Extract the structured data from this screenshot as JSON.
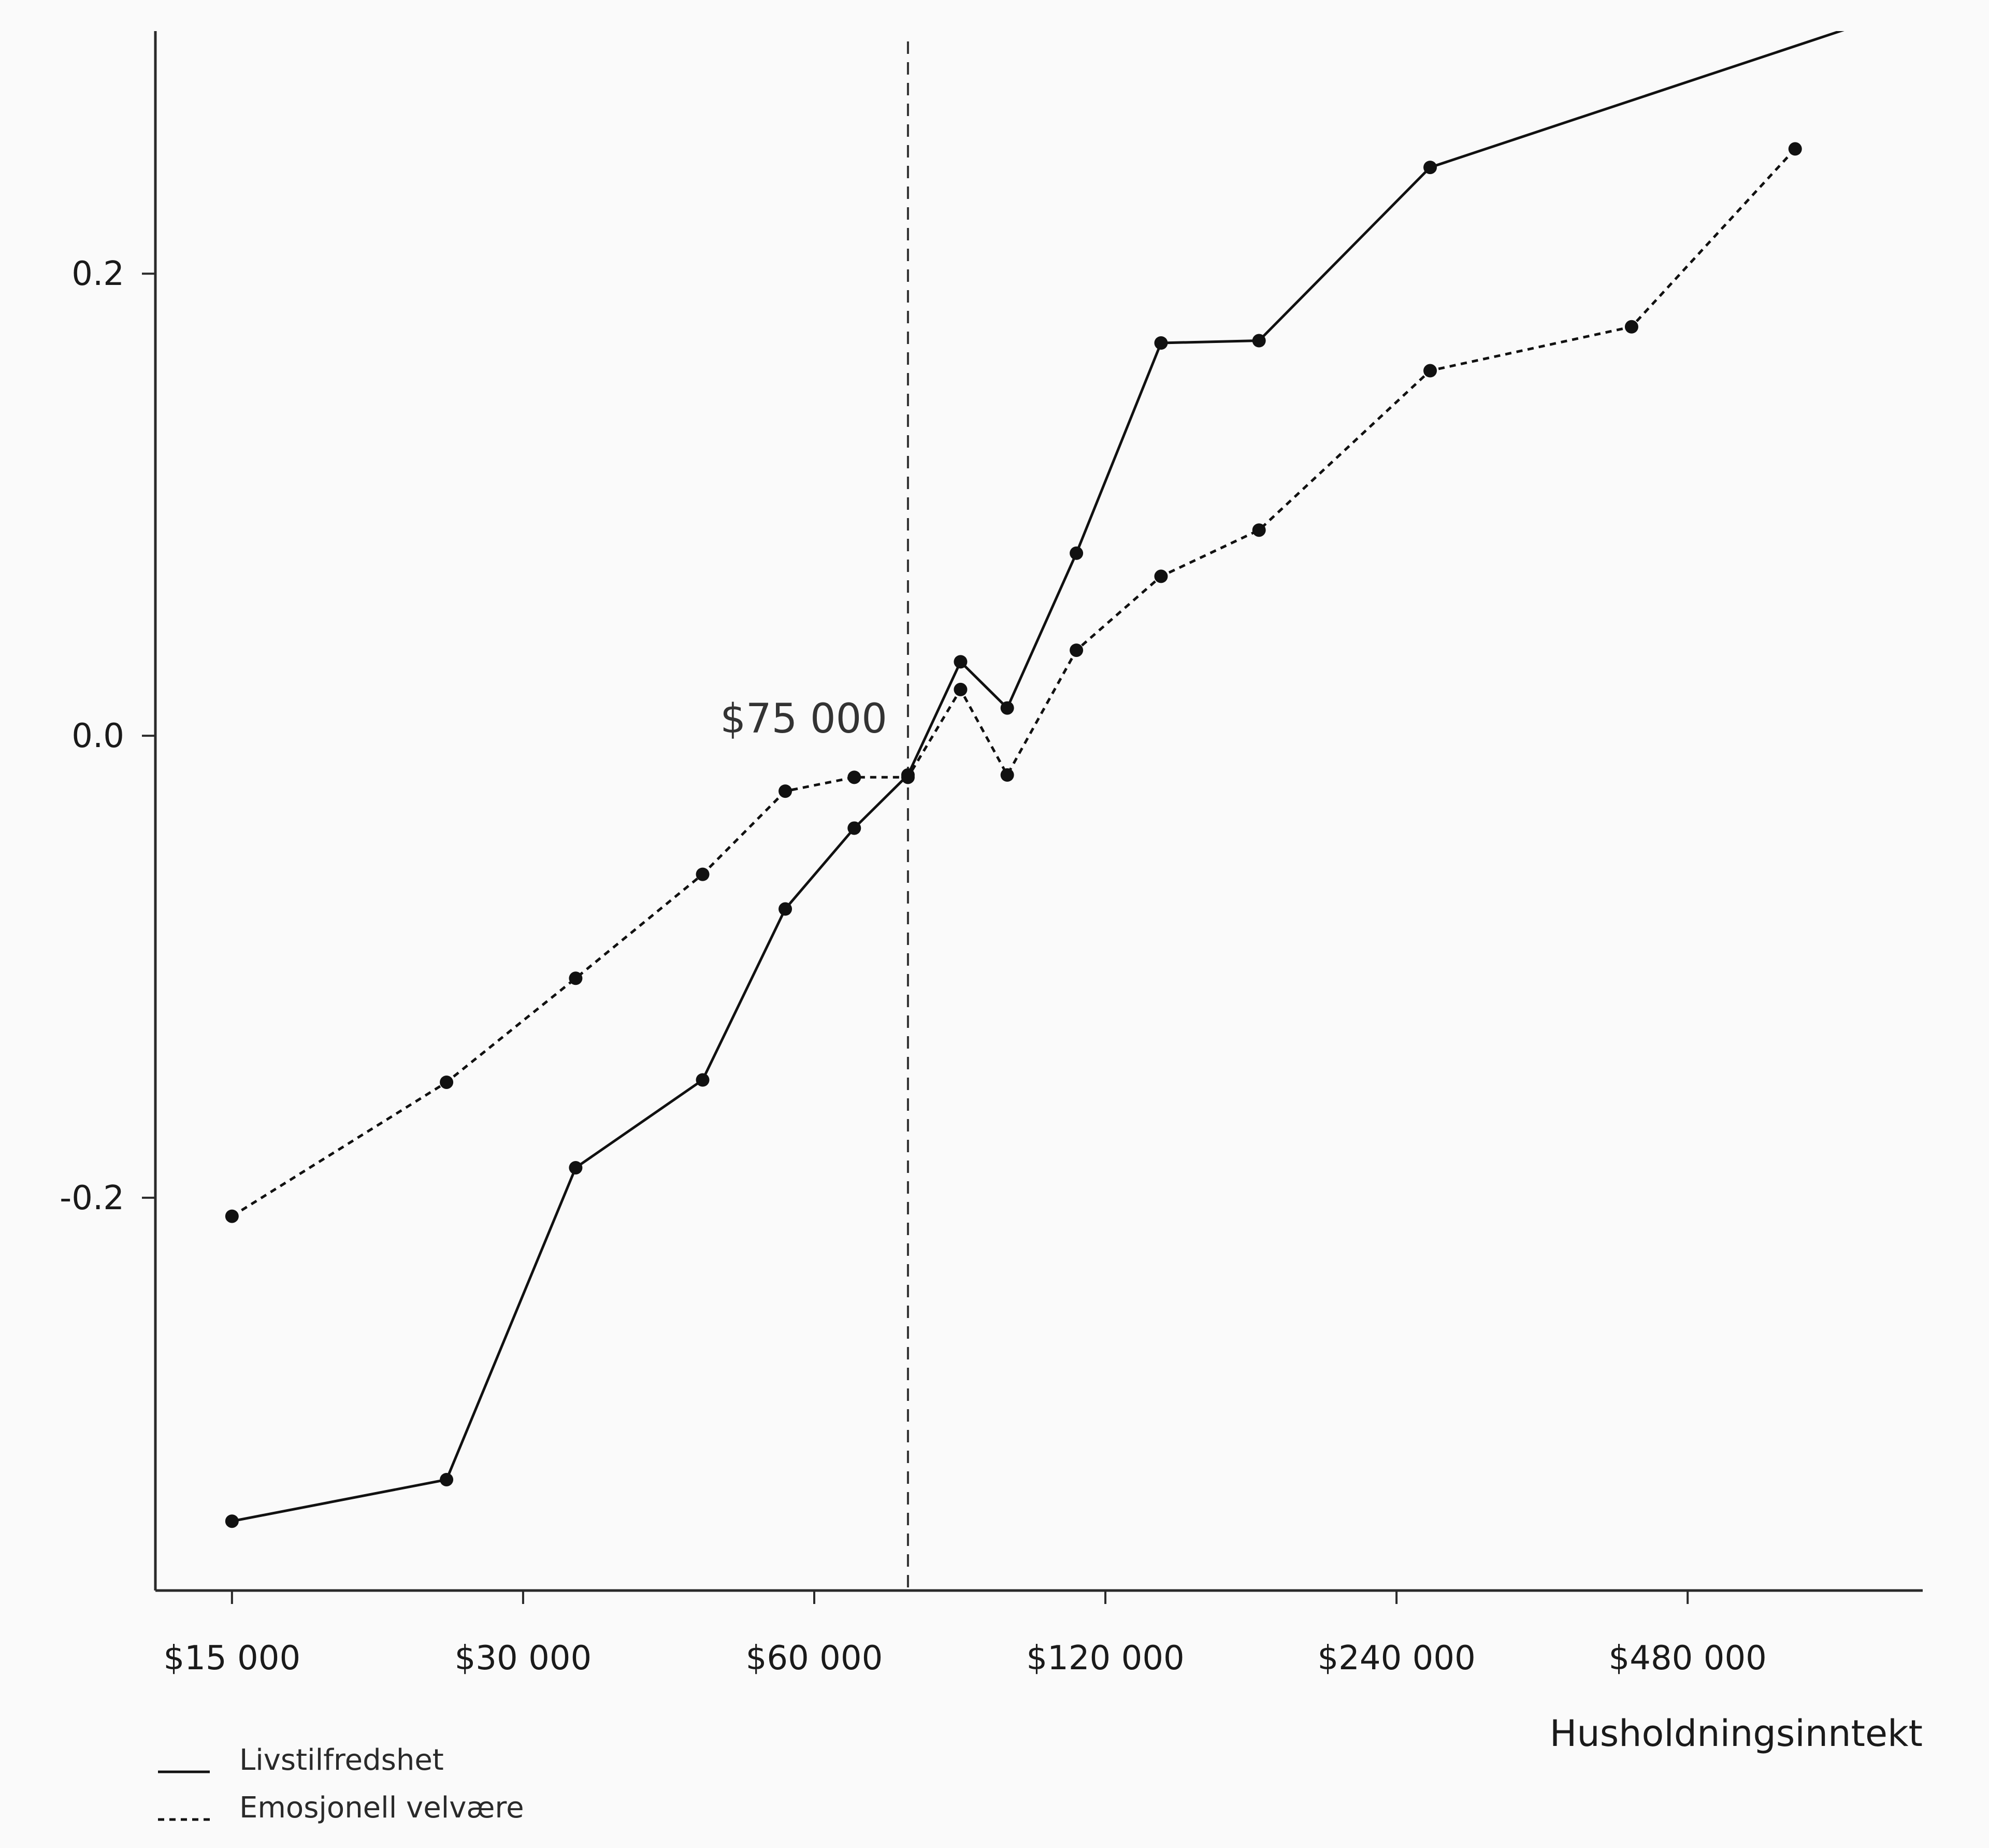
{
  "chart_data": {
    "type": "line",
    "xlabel": "Husholdningsinntekt",
    "ylabel": "",
    "x_scale": "log2",
    "xlim": [
      12500,
      840000
    ],
    "ylim": [
      -0.37,
      0.305
    ],
    "x_ticks": [
      15000,
      30000,
      60000,
      120000,
      240000,
      480000
    ],
    "x_tick_labels": [
      "$15 000",
      "$30 000",
      "$60 000",
      "$120 000",
      "$240 000",
      "$480 000"
    ],
    "y_ticks": [
      -0.2,
      0.0,
      0.2
    ],
    "y_tick_labels": [
      "-0.2",
      "0.0",
      "0.2"
    ],
    "grid": false,
    "reference_line": {
      "x": 75000,
      "label": "$75 000",
      "style": "dashed"
    },
    "legend_position": "bottom-left",
    "series": [
      {
        "name": "Livstilfredshet",
        "style": "solid",
        "x": [
          15000,
          25000,
          34000,
          46000,
          56000,
          66000,
          75000,
          85000,
          95000,
          112000,
          137000,
          173000,
          260000,
          750000
        ],
        "y": [
          -0.34,
          -0.322,
          -0.187,
          -0.149,
          -0.075,
          -0.04,
          -0.017,
          0.032,
          0.012,
          0.079,
          0.17,
          0.171,
          0.246,
          0.31
        ]
      },
      {
        "name": "Emosjonell velvære",
        "style": "dotted",
        "x": [
          15000,
          25000,
          34000,
          46000,
          56000,
          66000,
          75000,
          85000,
          95000,
          112000,
          137000,
          173000,
          260000,
          420000,
          620000
        ],
        "y": [
          -0.208,
          -0.15,
          -0.105,
          -0.06,
          -0.024,
          -0.018,
          -0.018,
          0.02,
          -0.017,
          0.037,
          0.069,
          0.089,
          0.158,
          0.177,
          0.254
        ]
      }
    ]
  }
}
